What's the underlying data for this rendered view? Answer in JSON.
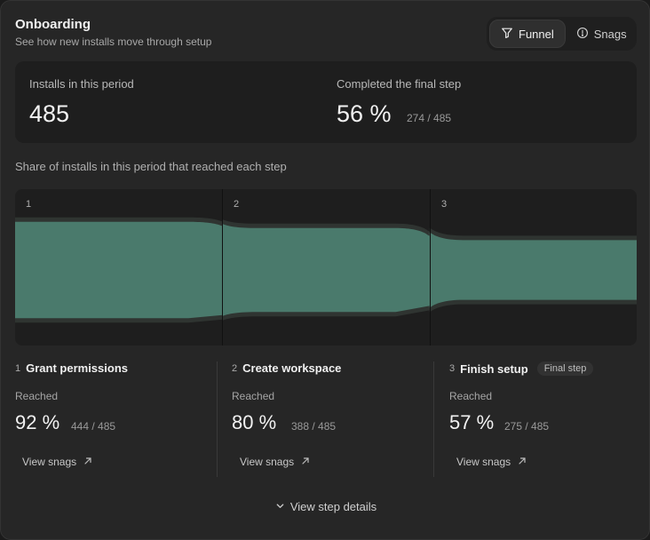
{
  "header": {
    "title": "Onboarding",
    "subtitle": "See how new installs move through setup"
  },
  "view_toggle": {
    "options": [
      {
        "label": "Funnel",
        "icon": "funnel-icon",
        "active": true
      },
      {
        "label": "Snags",
        "icon": "alert-circle-icon",
        "active": false
      }
    ]
  },
  "summary": {
    "installs_label": "Installs in this period",
    "installs_value": "485",
    "completed_label": "Completed the final step",
    "completed_value": "56 %",
    "completed_fraction": "274 / 485"
  },
  "chart_caption": "Share of installs in this period that reached each step",
  "chart_data": {
    "type": "area",
    "step_labels": [
      "1",
      "2",
      "3"
    ],
    "values": [
      92,
      80,
      57
    ],
    "ylim": [
      0,
      100
    ],
    "fill_color": "#4a7a6c",
    "outline_color": "#2f3431"
  },
  "steps": [
    {
      "index": "1",
      "name": "Grant permissions",
      "badge": "",
      "reached_label": "Reached",
      "percent": "92 %",
      "fraction": "444 / 485",
      "link": "View snags"
    },
    {
      "index": "2",
      "name": "Create workspace",
      "badge": "",
      "reached_label": "Reached",
      "percent": "80 %",
      "fraction": "388 / 485",
      "link": "View snags"
    },
    {
      "index": "3",
      "name": "Finish setup",
      "badge": "Final step",
      "reached_label": "Reached",
      "percent": "57 %",
      "fraction": "275 / 485",
      "link": "View snags"
    }
  ],
  "footer": {
    "details_label": "View step details"
  }
}
